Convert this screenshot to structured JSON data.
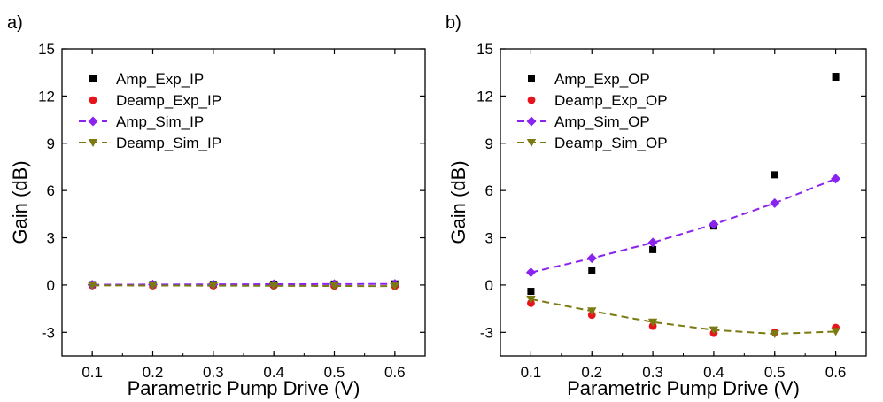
{
  "chart_data": [
    {
      "type": "scatter",
      "panel_label": "a)",
      "xlabel": "Parametric Pump Drive (V)",
      "ylabel": "Gain (dB)",
      "xlim": [
        0.05,
        0.65
      ],
      "ylim": [
        -4.5,
        15
      ],
      "xticks": [
        "0.1",
        "0.2",
        "0.3",
        "0.4",
        "0.5",
        "0.6"
      ],
      "yticks": [
        "-3",
        "0",
        "3",
        "6",
        "9",
        "12",
        "15"
      ],
      "x": [
        0.1,
        0.2,
        0.3,
        0.4,
        0.5,
        0.6
      ],
      "legend_position": "top-left",
      "series": [
        {
          "name": "Amp_Exp_IP",
          "marker": "square",
          "color": "#000000",
          "line": false,
          "values": [
            0.02,
            0.03,
            0.04,
            0.05,
            0.06,
            0.07
          ]
        },
        {
          "name": "Deamp_Exp_IP",
          "marker": "circle",
          "color": "#e8141b",
          "line": false,
          "values": [
            -0.02,
            -0.03,
            -0.03,
            -0.04,
            -0.05,
            -0.06
          ]
        },
        {
          "name": "Amp_Sim_IP",
          "marker": "diamond",
          "color": "#8b23f0",
          "line": true,
          "values": [
            0.02,
            0.03,
            0.04,
            0.05,
            0.06,
            0.07
          ]
        },
        {
          "name": "Deamp_Sim_IP",
          "marker": "triangle-down",
          "color": "#7a7a11",
          "line": true,
          "values": [
            -0.02,
            -0.03,
            -0.04,
            -0.05,
            -0.06,
            -0.07
          ]
        }
      ]
    },
    {
      "type": "scatter",
      "panel_label": "b)",
      "xlabel": "Parametric Pump Drive (V)",
      "ylabel": "Gain (dB)",
      "xlim": [
        0.05,
        0.65
      ],
      "ylim": [
        -4.5,
        15
      ],
      "xticks": [
        "0.1",
        "0.2",
        "0.3",
        "0.4",
        "0.5",
        "0.6"
      ],
      "yticks": [
        "-3",
        "0",
        "3",
        "6",
        "9",
        "12",
        "15"
      ],
      "x": [
        0.1,
        0.2,
        0.3,
        0.4,
        0.5,
        0.6
      ],
      "legend_position": "top-left",
      "series": [
        {
          "name": "Amp_Exp_OP",
          "marker": "square",
          "color": "#000000",
          "line": false,
          "values": [
            -0.4,
            0.95,
            2.25,
            3.75,
            7.0,
            13.2
          ]
        },
        {
          "name": "Deamp_Exp_OP",
          "marker": "circle",
          "color": "#e8141b",
          "line": false,
          "values": [
            -1.15,
            -1.9,
            -2.6,
            -3.05,
            -3.0,
            -2.7
          ]
        },
        {
          "name": "Amp_Sim_OP",
          "marker": "diamond",
          "color": "#8b23f0",
          "line": true,
          "values": [
            0.8,
            1.7,
            2.7,
            3.85,
            5.2,
            6.75
          ]
        },
        {
          "name": "Deamp_Sim_OP",
          "marker": "triangle-down",
          "color": "#7a7a11",
          "line": true,
          "values": [
            -0.9,
            -1.65,
            -2.35,
            -2.85,
            -3.1,
            -2.95
          ]
        }
      ]
    }
  ]
}
